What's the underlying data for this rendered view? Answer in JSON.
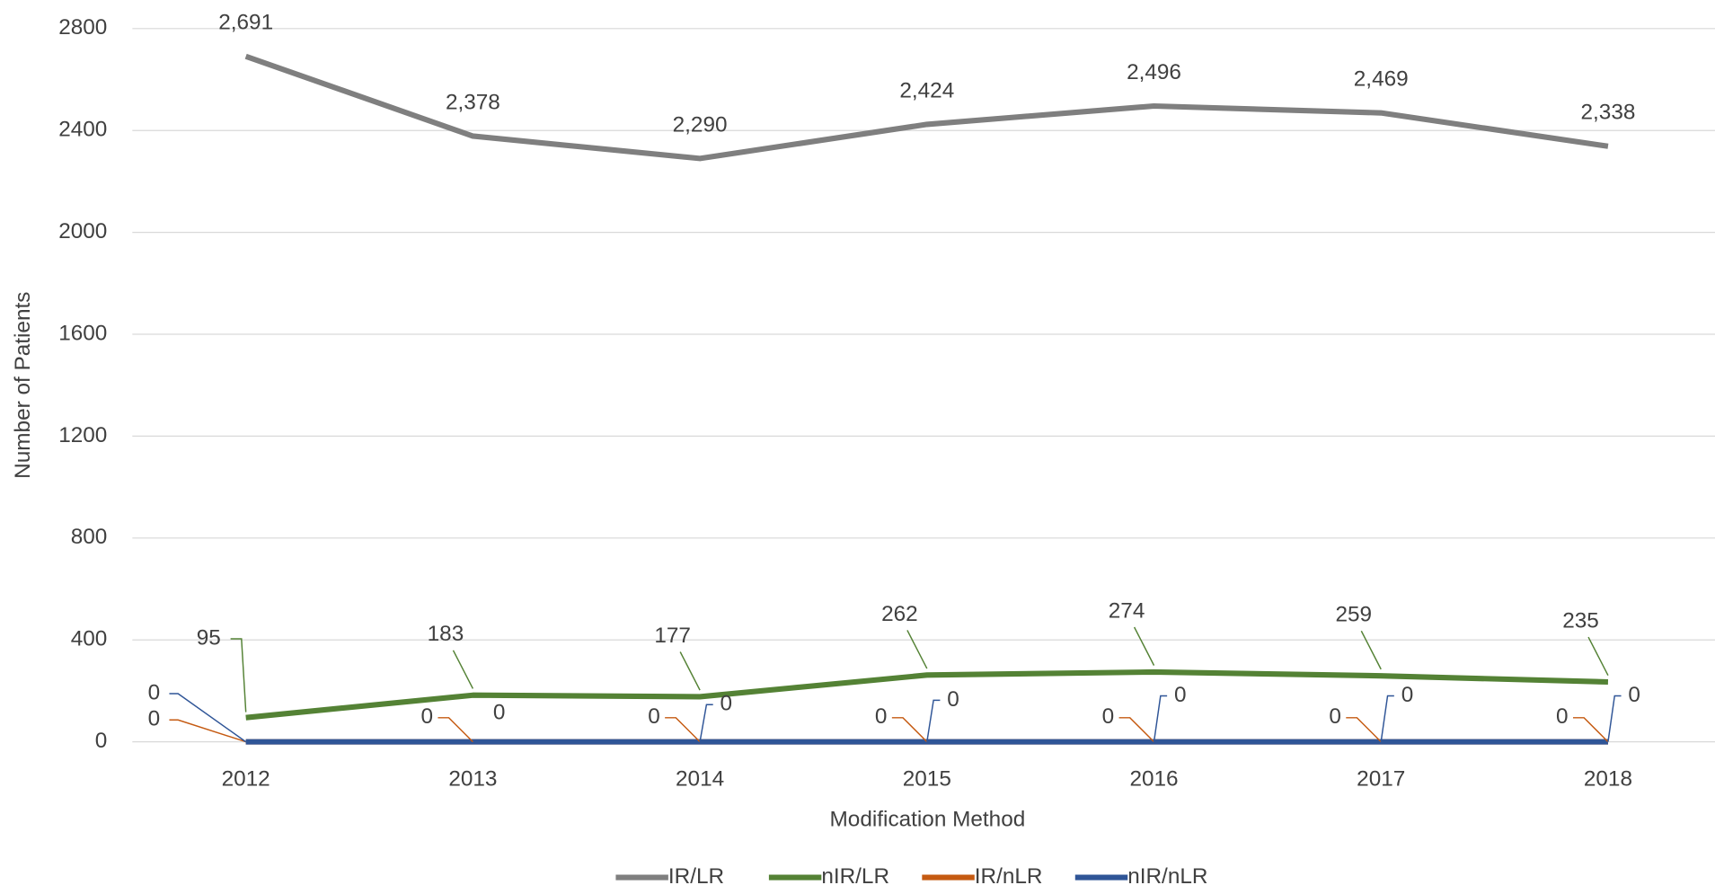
{
  "chart_data": {
    "type": "line",
    "x_label": "Modification Method",
    "y_label": "Number of Patients",
    "categories": [
      "2012",
      "2013",
      "2014",
      "2015",
      "2016",
      "2017",
      "2018"
    ],
    "ylim": [
      0,
      2800
    ],
    "yticks": [
      0,
      400,
      800,
      1200,
      1600,
      2000,
      2400,
      2800
    ],
    "grid": true,
    "legend": "bottom",
    "series": [
      {
        "name": "IR/LR",
        "color": "#7f7f7f",
        "values": [
          2691,
          2378,
          2290,
          2424,
          2496,
          2469,
          2338
        ],
        "value_labels": [
          "2,691",
          "2,378",
          "2,290",
          "2,424",
          "2,496",
          "2,469",
          "2,338"
        ]
      },
      {
        "name": "nIR/LR",
        "color": "#548235",
        "values": [
          95,
          183,
          177,
          262,
          274,
          259,
          235
        ]
      },
      {
        "name": "IR/nLR",
        "color": "#c55a11",
        "values": [
          0,
          0,
          0,
          0,
          0,
          0,
          0
        ]
      },
      {
        "name": "nIR/nLR",
        "color": "#2f5597",
        "values": [
          0,
          0,
          0,
          0,
          0,
          0,
          0
        ]
      }
    ]
  }
}
